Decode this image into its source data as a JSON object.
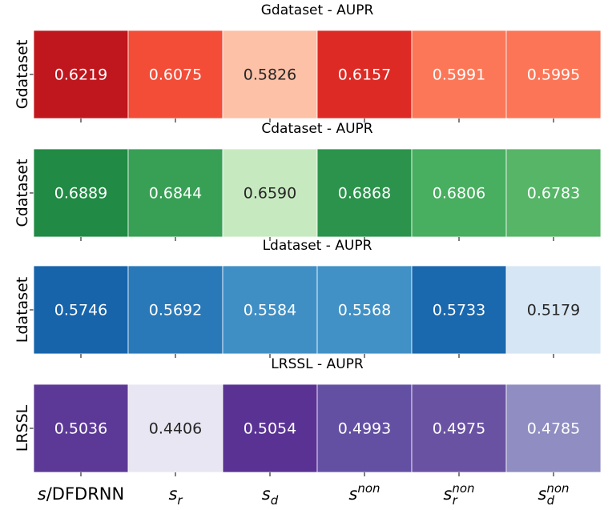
{
  "chart_data": [
    {
      "type": "heatmap",
      "title": "Gdataset - AUPR",
      "ylabel": "Gdataset",
      "colormap": "Reds",
      "categories": [
        "s/DFDRNN",
        "s_r",
        "s_d",
        "s^non",
        "s_r^non",
        "s_d^non"
      ],
      "values": [
        "0.6219",
        "0.6075",
        "0.5826",
        "0.6157",
        "0.5991",
        "0.5995"
      ],
      "cell_colors": [
        "#c0161d",
        "#f34c37",
        "#fcc1a7",
        "#dd2a25",
        "#fc7758",
        "#fc7556"
      ],
      "text_colors": [
        "#ffffff",
        "#ffffff",
        "#262626",
        "#ffffff",
        "#ffffff",
        "#ffffff"
      ]
    },
    {
      "type": "heatmap",
      "title": "Cdataset - AUPR",
      "ylabel": "Cdataset",
      "colormap": "Greens",
      "categories": [
        "s/DFDRNN",
        "s_r",
        "s_d",
        "s^non",
        "s_r^non",
        "s_d^non"
      ],
      "values": [
        "0.6889",
        "0.6844",
        "0.6590",
        "0.6868",
        "0.6806",
        "0.6783"
      ],
      "cell_colors": [
        "#218a44",
        "#38a055",
        "#c7e9c0",
        "#2b934b",
        "#48ae60",
        "#56b567"
      ],
      "text_colors": [
        "#ffffff",
        "#ffffff",
        "#262626",
        "#ffffff",
        "#ffffff",
        "#ffffff"
      ]
    },
    {
      "type": "heatmap",
      "title": "Ldataset - AUPR",
      "ylabel": "Ldataset",
      "colormap": "Blues",
      "categories": [
        "s/DFDRNN",
        "s_r",
        "s_d",
        "s^non",
        "s_r^non",
        "s_d^non"
      ],
      "values": [
        "0.5746",
        "0.5692",
        "0.5584",
        "0.5568",
        "0.5733",
        "0.5179"
      ],
      "cell_colors": [
        "#1764ab",
        "#2979b9",
        "#3f8fc5",
        "#4191c6",
        "#1a68ae",
        "#d6e6f4"
      ],
      "text_colors": [
        "#ffffff",
        "#ffffff",
        "#ffffff",
        "#ffffff",
        "#ffffff",
        "#262626"
      ]
    },
    {
      "type": "heatmap",
      "title": "LRSSL - AUPR",
      "ylabel": "LRSSL",
      "colormap": "Purples",
      "categories": [
        "s/DFDRNN",
        "s_r",
        "s_d",
        "s^non",
        "s_r^non",
        "s_d^non"
      ],
      "values": [
        "0.5036",
        "0.4406",
        "0.5054",
        "0.4993",
        "0.4975",
        "0.4785"
      ],
      "cell_colors": [
        "#5c3996",
        "#e8e6f2",
        "#5a3294",
        "#6450a3",
        "#6a52a3",
        "#8f8dc1"
      ],
      "text_colors": [
        "#ffffff",
        "#262626",
        "#ffffff",
        "#ffffff",
        "#ffffff",
        "#ffffff"
      ]
    }
  ],
  "x_tick_labels": [
    {
      "base": "s",
      "sub": "",
      "sup": "",
      "suffix": "/DFDRNN"
    },
    {
      "base": "s",
      "sub": "r",
      "sup": "",
      "suffix": ""
    },
    {
      "base": "s",
      "sub": "d",
      "sup": "",
      "suffix": ""
    },
    {
      "base": "s",
      "sub": "",
      "sup": "non",
      "suffix": ""
    },
    {
      "base": "s",
      "sub": "r",
      "sup": "non",
      "suffix": ""
    },
    {
      "base": "s",
      "sub": "d",
      "sup": "non",
      "suffix": ""
    }
  ]
}
